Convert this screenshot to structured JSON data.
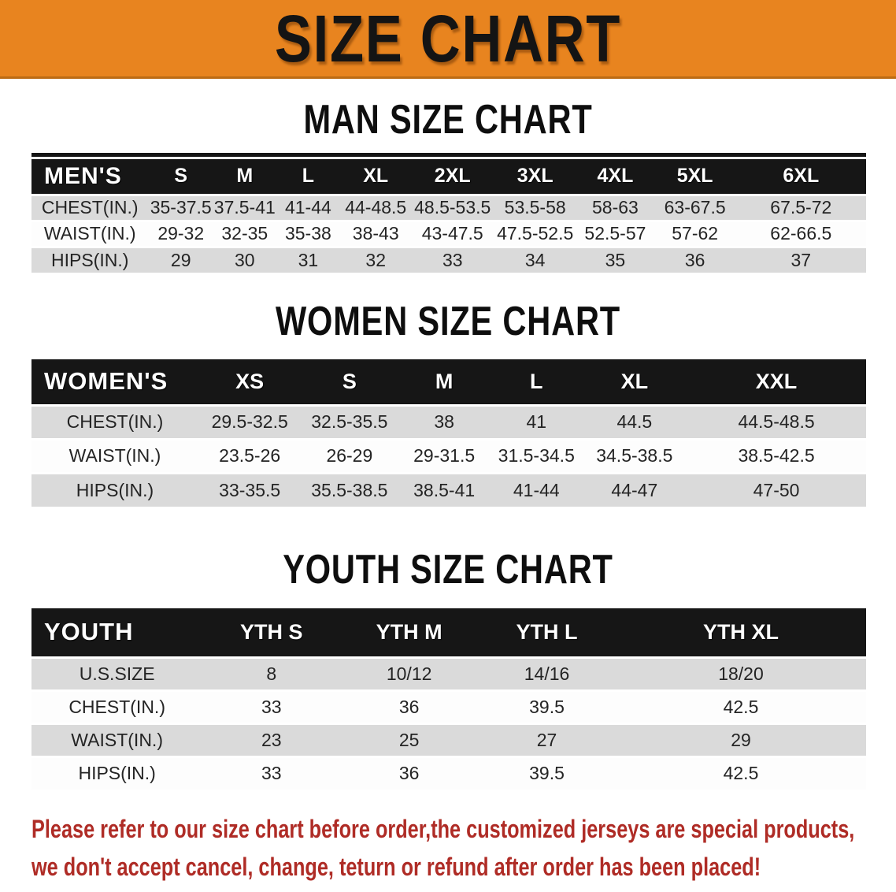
{
  "banner": {
    "title": "SIZE CHART"
  },
  "colors": {
    "banner_orange": "#E8841F",
    "banner_strip": "#BC6B14",
    "header_black": "#161616",
    "row_gray": "#DADADA",
    "notice_red": "#AF2C26"
  },
  "sections": {
    "men": {
      "heading": "MAN SIZE CHART",
      "table": {
        "header": [
          "MEN'S",
          "S",
          "M",
          "L",
          "XL",
          "2XL",
          "3XL",
          "4XL",
          "5XL",
          "6XL"
        ],
        "rows": [
          {
            "label": "CHEST(IN.)",
            "values": [
              "35-37.5",
              "37.5-41",
              "41-44",
              "44-48.5",
              "48.5-53.5",
              "53.5-58",
              "58-63",
              "63-67.5",
              "67.5-72"
            ]
          },
          {
            "label": "WAIST(IN.)",
            "values": [
              "29-32",
              "32-35",
              "35-38",
              "38-43",
              "43-47.5",
              "47.5-52.5",
              "52.5-57",
              "57-62",
              "62-66.5"
            ]
          },
          {
            "label": "HIPS(IN.)",
            "values": [
              "29",
              "30",
              "31",
              "32",
              "33",
              "34",
              "35",
              "36",
              "37"
            ]
          }
        ]
      }
    },
    "women": {
      "heading": "WOMEN SIZE CHART",
      "table": {
        "header": [
          "WOMEN'S",
          "XS",
          "S",
          "M",
          "L",
          "XL",
          "XXL"
        ],
        "rows": [
          {
            "label": "CHEST(IN.)",
            "values": [
              "29.5-32.5",
              "32.5-35.5",
              "38",
              "41",
              "44.5",
              "44.5-48.5"
            ]
          },
          {
            "label": "WAIST(IN.)",
            "values": [
              "23.5-26",
              "26-29",
              "29-31.5",
              "31.5-34.5",
              "34.5-38.5",
              "38.5-42.5"
            ]
          },
          {
            "label": "HIPS(IN.)",
            "values": [
              "33-35.5",
              "35.5-38.5",
              "38.5-41",
              "41-44",
              "44-47",
              "47-50"
            ]
          }
        ]
      }
    },
    "youth": {
      "heading": "YOUTH SIZE CHART",
      "table": {
        "header": [
          "YOUTH",
          "YTH S",
          "YTH M",
          "YTH L",
          "YTH XL"
        ],
        "rows": [
          {
            "label": "U.S.SIZE",
            "values": [
              "8",
              "10/12",
              "14/16",
              "18/20"
            ]
          },
          {
            "label": "CHEST(IN.)",
            "values": [
              "33",
              "36",
              "39.5",
              "42.5"
            ]
          },
          {
            "label": "WAIST(IN.)",
            "values": [
              "23",
              "25",
              "27",
              "29"
            ]
          },
          {
            "label": "HIPS(IN.)",
            "values": [
              "33",
              "36",
              "39.5",
              "42.5"
            ]
          }
        ]
      }
    }
  },
  "footer": {
    "line1": "Please refer to our size chart before order,the customized jerseys are special products,",
    "line2": "we don't accept cancel, change, teturn or refund after order has been placed!"
  }
}
